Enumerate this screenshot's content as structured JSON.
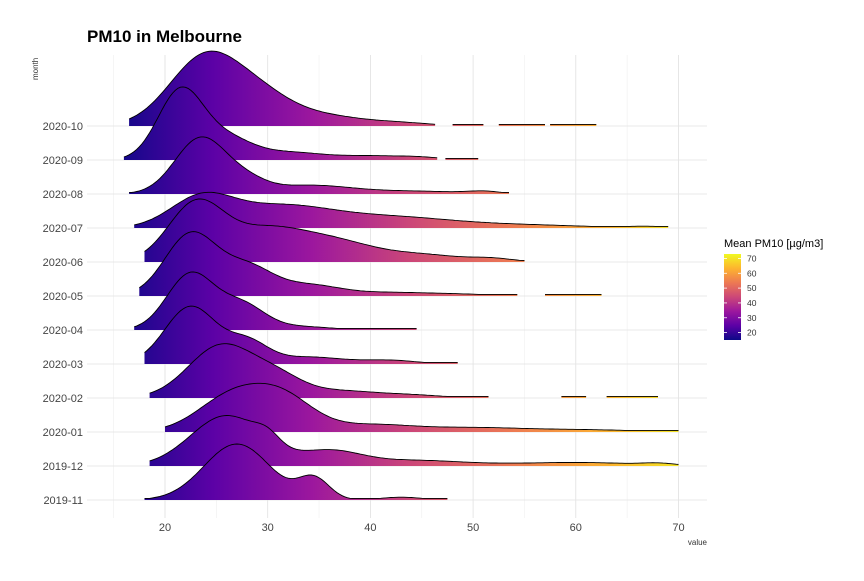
{
  "chart_data": {
    "type": "ridgeline",
    "title": "PM10 in Melbourne",
    "xlabel": "value",
    "ylabel": "month",
    "xlim": [
      13,
      73
    ],
    "x_ticks": [
      20,
      30,
      40,
      50,
      60,
      70
    ],
    "grid": true,
    "legend": {
      "title": "Mean PM10 [µg/m3]",
      "position": "right",
      "range": [
        15,
        73
      ],
      "ticks": [
        20,
        30,
        40,
        50,
        60,
        70
      ],
      "palette": [
        "#0d0887",
        "#5c01a6",
        "#9c179e",
        "#cc4778",
        "#ed7953",
        "#fdb42f",
        "#f0f921"
      ]
    },
    "ridges": [
      {
        "month": "2019-11",
        "min": 18,
        "max": 47.5,
        "peaks": [
          [
            27,
            0.8,
            3.2
          ],
          [
            34.5,
            0.3,
            1.5
          ],
          [
            43,
            0.04,
            2
          ]
        ],
        "segments": [
          [
            18,
            47.5
          ]
        ]
      },
      {
        "month": "2019-12",
        "min": 18.5,
        "max": 70,
        "peaks": [
          [
            26,
            0.72,
            3.5
          ],
          [
            30,
            0.15,
            1.2
          ],
          [
            36,
            0.2,
            3
          ],
          [
            44,
            0.08,
            5
          ],
          [
            60,
            0.05,
            6
          ],
          [
            68,
            0.025,
            1.5
          ]
        ],
        "segments": [
          [
            18.5,
            70
          ]
        ]
      },
      {
        "month": "2020-01",
        "min": 20,
        "max": 70,
        "peaks": [
          [
            26.5,
            0.5,
            3.3
          ],
          [
            31.5,
            0.45,
            3
          ],
          [
            40,
            0.1,
            4
          ],
          [
            50,
            0.06,
            5
          ],
          [
            61,
            0.03,
            5
          ]
        ],
        "segments": [
          [
            20,
            70
          ]
        ]
      },
      {
        "month": "2020-02",
        "min": 18.5,
        "max": 68,
        "peaks": [
          [
            25.5,
            0.75,
            3.2
          ],
          [
            31,
            0.25,
            2.5
          ],
          [
            37,
            0.1,
            3.5
          ],
          [
            44,
            0.04,
            3
          ]
        ],
        "segments": [
          [
            18.5,
            51.5
          ],
          [
            58.6,
            61
          ],
          [
            63,
            68
          ]
        ]
      },
      {
        "month": "2020-03",
        "min": 18,
        "max": 48.5,
        "peaks": [
          [
            22.5,
            0.82,
            2.5
          ],
          [
            28,
            0.3,
            2
          ],
          [
            34,
            0.1,
            3.5
          ],
          [
            42,
            0.05,
            2.5
          ]
        ],
        "segments": [
          [
            18,
            48.5
          ]
        ]
      },
      {
        "month": "2020-04",
        "min": 17,
        "max": 44.5,
        "peaks": [
          [
            22.5,
            0.8,
            2.3
          ],
          [
            27.5,
            0.35,
            2.2
          ],
          [
            33,
            0.05,
            3
          ]
        ],
        "segments": [
          [
            17,
            44.5
          ]
        ]
      },
      {
        "month": "2020-05",
        "min": 17.5,
        "max": 62.5,
        "peaks": [
          [
            22.5,
            0.88,
            2.5
          ],
          [
            28,
            0.4,
            2.5
          ],
          [
            34,
            0.15,
            3
          ],
          [
            42,
            0.05,
            4
          ],
          [
            49,
            0.02,
            3
          ]
        ],
        "segments": [
          [
            17.5,
            54.3
          ],
          [
            57,
            62.5
          ]
        ]
      },
      {
        "month": "2020-06",
        "min": 18,
        "max": 55,
        "peaks": [
          [
            23,
            0.82,
            2.7
          ],
          [
            29.5,
            0.4,
            3.5
          ],
          [
            36,
            0.3,
            4
          ],
          [
            45,
            0.1,
            4
          ],
          [
            52,
            0.04,
            2
          ]
        ],
        "segments": [
          [
            18,
            55
          ]
        ]
      },
      {
        "month": "2020-07",
        "min": 17,
        "max": 69,
        "peaks": [
          [
            23.5,
            0.4,
            3
          ],
          [
            31,
            0.3,
            5
          ],
          [
            42,
            0.15,
            6
          ],
          [
            55,
            0.04,
            6
          ],
          [
            67,
            0.02,
            2
          ]
        ],
        "segments": [
          [
            17,
            69
          ]
        ]
      },
      {
        "month": "2020-08",
        "min": 16.5,
        "max": 53.5,
        "peaks": [
          [
            23.5,
            0.8,
            2.5
          ],
          [
            28,
            0.15,
            2
          ],
          [
            34,
            0.12,
            4
          ],
          [
            44,
            0.04,
            5
          ],
          [
            51,
            0.03,
            1.5
          ]
        ],
        "segments": [
          [
            16.5,
            53.5
          ]
        ]
      },
      {
        "month": "2020-09",
        "min": 16,
        "max": 50.5,
        "peaks": [
          [
            21.5,
            0.98,
            2.2
          ],
          [
            26,
            0.3,
            2.5
          ],
          [
            32,
            0.1,
            3
          ],
          [
            40,
            0.06,
            4
          ],
          [
            45,
            0.02,
            2
          ]
        ],
        "segments": [
          [
            16,
            46.5
          ],
          [
            47.3,
            50.5
          ]
        ]
      },
      {
        "month": "2020-10",
        "min": 16.5,
        "max": 62,
        "peaks": [
          [
            24,
            1.0,
            3.5
          ],
          [
            29.5,
            0.3,
            3
          ],
          [
            35,
            0.15,
            4
          ],
          [
            43,
            0.04,
            3
          ]
        ],
        "segments": [
          [
            16.5,
            46.3
          ],
          [
            48,
            51
          ],
          [
            52.5,
            57
          ],
          [
            57.5,
            62
          ]
        ]
      }
    ]
  }
}
